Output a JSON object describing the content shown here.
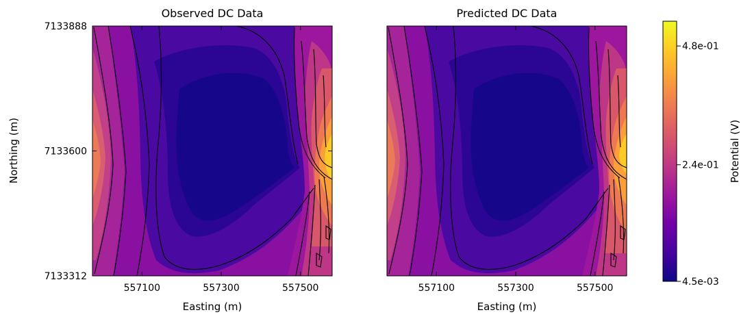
{
  "chart_data": [
    {
      "type": "heatmap",
      "title": "Observed DC Data",
      "xlabel": "Easting (m)",
      "ylabel": "Northing (m)",
      "xlim": [
        556975,
        557580
      ],
      "ylim": [
        7133312,
        7133888
      ],
      "xticks": [
        "557100",
        "557300",
        "557500"
      ],
      "yticks": [
        "7133312",
        "7133600",
        "7133888"
      ],
      "xticks_values": [
        557100,
        557300,
        557500
      ],
      "yticks_values": [
        7133312,
        7133600,
        7133888
      ],
      "data_extent": {
        "x": [
          557020,
          557575
        ],
        "y": [
          7133330,
          7133888
        ]
      }
    },
    {
      "type": "heatmap",
      "title": "Predicted DC Data",
      "xlabel": "Easting (m)",
      "ylabel": "",
      "xlim": [
        556975,
        557580
      ],
      "ylim": [
        7133312,
        7133888
      ],
      "xticks": [
        "557100",
        "557300",
        "557500"
      ],
      "xticks_values": [
        557100,
        557300,
        557500
      ],
      "data_extent": {
        "x": [
          557020,
          557575
        ],
        "y": [
          7133330,
          7133888
        ]
      }
    }
  ],
  "colorbar": {
    "label": "Potential (V)",
    "ticks": [
      "4.8e-01",
      "2.4e-01",
      "4.5e-03"
    ],
    "tick_values": [
      0.48,
      0.24,
      0.0045
    ],
    "min": 0.0045,
    "max": 0.53,
    "colormap": "plasma",
    "colors": [
      "#0d0887",
      "#46039f",
      "#7201a8",
      "#9c179e",
      "#bd3786",
      "#d8576b",
      "#ed7953",
      "#fb9f3a",
      "#fdca26",
      "#f0f921"
    ]
  }
}
